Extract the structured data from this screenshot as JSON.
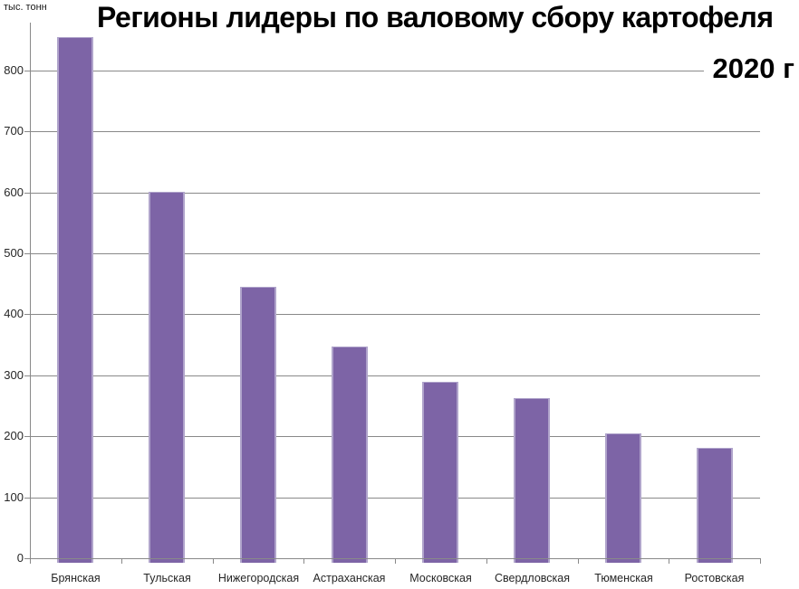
{
  "title": {
    "line1": "Регионы лидеры по валовому сбору картофеля",
    "line2": "2020 г"
  },
  "y_axis": {
    "unit_label": "тыс. тонн"
  },
  "colors": {
    "bar_fill": "#7D64A6",
    "bar_edge": "#B0A4CB",
    "gridline": "#898989",
    "axis": "#898989",
    "tick_text": "#262626",
    "title_text": "#000000",
    "background": "#FFFFFF"
  },
  "chart_data": {
    "type": "bar",
    "title": "Регионы лидеры по валовому сбору картофеля 2020 г",
    "xlabel": "",
    "ylabel": "тыс. тонн",
    "categories": [
      "Брянская",
      "Тульская",
      "Нижегородская",
      "Астраханская",
      "Московская",
      "Свердловская",
      "Тюменская",
      "Ростовская"
    ],
    "values": [
      855,
      601,
      445,
      347,
      290,
      262,
      205,
      181
    ],
    "ylim": [
      0,
      900
    ],
    "yticks": [
      0,
      100,
      200,
      300,
      400,
      500,
      600,
      700,
      800
    ],
    "grid": true,
    "legend_position": "none"
  }
}
